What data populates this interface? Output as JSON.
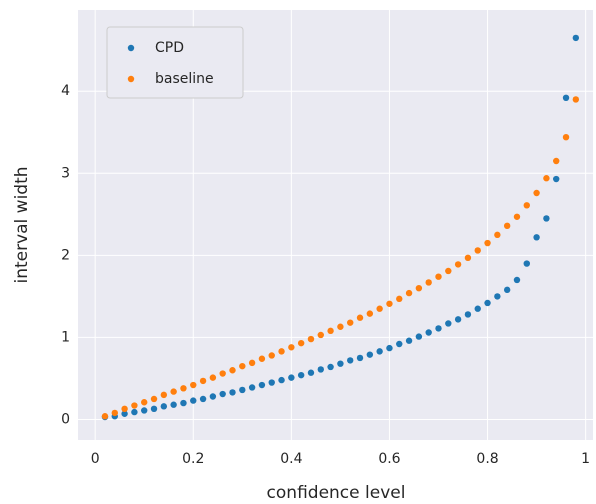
{
  "chart_data": {
    "type": "scatter",
    "xlabel": "confidence level",
    "ylabel": "interval width",
    "xlim": [
      -0.035,
      1.015
    ],
    "ylim": [
      -0.25,
      4.99
    ],
    "xticks": [
      0,
      0.2,
      0.4,
      0.6,
      0.8,
      1
    ],
    "yticks": [
      0,
      1,
      2,
      3,
      4
    ],
    "grid": true,
    "legend": "upper left",
    "x": [
      0.02,
      0.04,
      0.06,
      0.08,
      0.1,
      0.12,
      0.14,
      0.16,
      0.18,
      0.2,
      0.22,
      0.24,
      0.26,
      0.28,
      0.3,
      0.32,
      0.34,
      0.36,
      0.38,
      0.4,
      0.42,
      0.44,
      0.46,
      0.48,
      0.5,
      0.52,
      0.54,
      0.56,
      0.58,
      0.6,
      0.62,
      0.64,
      0.66,
      0.68,
      0.7,
      0.72,
      0.74,
      0.76,
      0.78,
      0.8,
      0.82,
      0.84,
      0.86,
      0.88,
      0.9,
      0.92,
      0.94,
      0.96,
      0.98
    ],
    "series": [
      {
        "name": "CPD",
        "color": "#1f77b4",
        "values": [
          0.03,
          0.04,
          0.07,
          0.09,
          0.11,
          0.13,
          0.16,
          0.18,
          0.2,
          0.23,
          0.25,
          0.28,
          0.31,
          0.33,
          0.36,
          0.39,
          0.42,
          0.45,
          0.48,
          0.51,
          0.54,
          0.57,
          0.61,
          0.64,
          0.68,
          0.72,
          0.75,
          0.79,
          0.83,
          0.87,
          0.92,
          0.96,
          1.01,
          1.06,
          1.11,
          1.17,
          1.22,
          1.28,
          1.35,
          1.42,
          1.5,
          1.58,
          1.7,
          1.9,
          2.22,
          2.45,
          2.93,
          3.92,
          4.65
        ]
      },
      {
        "name": "baseline",
        "color": "#ff7f0e",
        "values": [
          0.04,
          0.08,
          0.13,
          0.17,
          0.21,
          0.25,
          0.3,
          0.34,
          0.38,
          0.42,
          0.47,
          0.51,
          0.56,
          0.6,
          0.65,
          0.69,
          0.74,
          0.78,
          0.83,
          0.88,
          0.93,
          0.98,
          1.03,
          1.08,
          1.13,
          1.18,
          1.24,
          1.29,
          1.35,
          1.41,
          1.47,
          1.54,
          1.6,
          1.67,
          1.74,
          1.81,
          1.89,
          1.97,
          2.06,
          2.15,
          2.25,
          2.36,
          2.47,
          2.61,
          2.76,
          2.94,
          3.15,
          3.44,
          3.9
        ]
      }
    ]
  }
}
